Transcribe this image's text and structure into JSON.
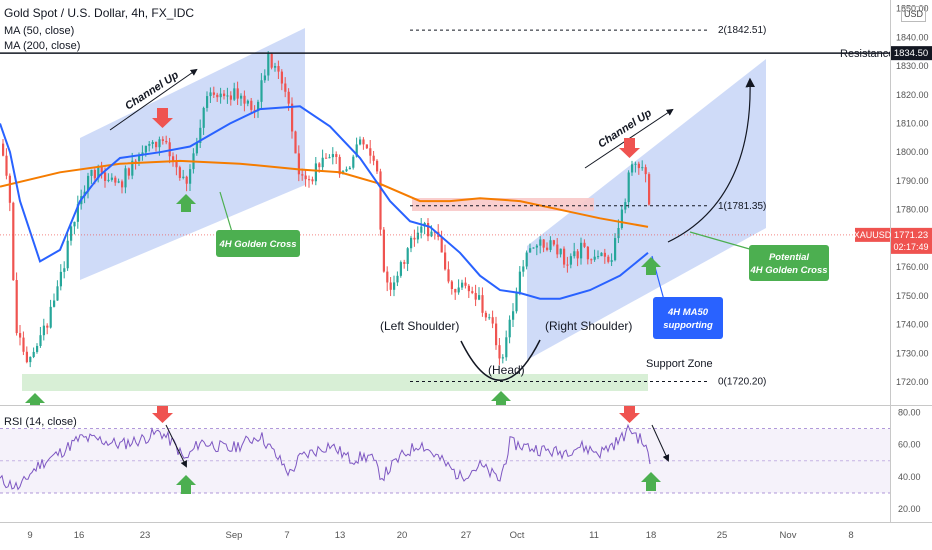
{
  "header": {
    "title": "Gold Spot / U.S. Dollar, 4h, FX_IDC",
    "ma50": "MA (50, close)",
    "ma200": "MA (200, close)",
    "rsi": "RSI (14, close)",
    "currency": "USD"
  },
  "colors": {
    "up": "#26a69a",
    "down": "#ef5350",
    "ma50": "#2962ff",
    "ma200": "#f57c00",
    "rsi": "#7e57c2",
    "channel": "#c7d5f7",
    "support_zone": "#d4edd2",
    "pink_zone": "#f8c9c9",
    "callout_green": "#4caf50",
    "callout_blue": "#2962ff",
    "price_tag": "#ef5350"
  },
  "chart_data": {
    "type": "candlestick",
    "symbol": "XAUUSD",
    "timeframe": "4h",
    "xaxis_ticks": [
      "9",
      "16",
      "23",
      "Sep",
      "7",
      "13",
      "20",
      "27",
      "Oct",
      "11",
      "18",
      "25",
      "Nov",
      "8"
    ],
    "price_axis": {
      "ticks": [
        1720,
        1730,
        1740,
        1750,
        1760,
        1770,
        1780,
        1790,
        1800,
        1810,
        1820,
        1830,
        1840,
        1850
      ],
      "range": [
        1712,
        1853
      ]
    },
    "rsi_axis": {
      "ticks": [
        20,
        40,
        60,
        80
      ],
      "range": [
        12,
        84
      ],
      "bands": [
        30,
        50,
        70
      ]
    },
    "levels": {
      "resistance": {
        "label": "Resistance",
        "value": 1834.5,
        "tag": "1834.50"
      },
      "current": {
        "value": 1771.23,
        "symbol_tag": "XAUUSD",
        "price_tag": "1771.23",
        "countdown": "02:17:49"
      },
      "fib": [
        {
          "label": "2(1842.51)",
          "value": 1842.51
        },
        {
          "label": "1(1781.35)",
          "value": 1781.35
        },
        {
          "label": "0(1720.20)",
          "value": 1720.2
        }
      ]
    },
    "ma50_points": [
      [
        0,
        1810
      ],
      [
        10,
        1800
      ],
      [
        20,
        1783
      ],
      [
        40,
        1762
      ],
      [
        60,
        1766
      ],
      [
        80,
        1783
      ],
      [
        100,
        1792
      ],
      [
        120,
        1798
      ],
      [
        160,
        1800
      ],
      [
        190,
        1802
      ],
      [
        230,
        1810
      ],
      [
        260,
        1815
      ],
      [
        300,
        1816
      ],
      [
        330,
        1809
      ],
      [
        360,
        1798
      ],
      [
        390,
        1783
      ],
      [
        410,
        1776
      ],
      [
        430,
        1774
      ],
      [
        460,
        1765
      ],
      [
        480,
        1757
      ],
      [
        500,
        1752
      ],
      [
        520,
        1751
      ],
      [
        540,
        1749
      ],
      [
        560,
        1749
      ],
      [
        590,
        1752
      ],
      [
        620,
        1757
      ],
      [
        648,
        1765
      ]
    ],
    "ma200_points": [
      [
        0,
        1788
      ],
      [
        60,
        1793
      ],
      [
        120,
        1796
      ],
      [
        180,
        1797
      ],
      [
        240,
        1796
      ],
      [
        300,
        1794
      ],
      [
        340,
        1793
      ],
      [
        380,
        1789
      ],
      [
        420,
        1783
      ],
      [
        450,
        1783
      ],
      [
        480,
        1784
      ],
      [
        520,
        1783
      ],
      [
        560,
        1780
      ],
      [
        600,
        1777
      ],
      [
        648,
        1774
      ]
    ],
    "rsi_points": [
      [
        0,
        38
      ],
      [
        20,
        33
      ],
      [
        30,
        42
      ],
      [
        40,
        48
      ],
      [
        60,
        55
      ],
      [
        80,
        64
      ],
      [
        100,
        63
      ],
      [
        120,
        60
      ],
      [
        140,
        63
      ],
      [
        160,
        68
      ],
      [
        175,
        60
      ],
      [
        185,
        50
      ],
      [
        200,
        62
      ],
      [
        230,
        57
      ],
      [
        260,
        66
      ],
      [
        280,
        50
      ],
      [
        290,
        42
      ],
      [
        300,
        52
      ],
      [
        330,
        60
      ],
      [
        350,
        51
      ],
      [
        370,
        53
      ],
      [
        382,
        40
      ],
      [
        400,
        52
      ],
      [
        420,
        61
      ],
      [
        440,
        51
      ],
      [
        460,
        40
      ],
      [
        480,
        47
      ],
      [
        500,
        38
      ],
      [
        510,
        61
      ],
      [
        540,
        57
      ],
      [
        560,
        55
      ],
      [
        580,
        59
      ],
      [
        600,
        55
      ],
      [
        620,
        63
      ],
      [
        630,
        70
      ],
      [
        645,
        60
      ],
      [
        650,
        48
      ]
    ],
    "channels": [
      "Channel Up",
      "Channel Up"
    ],
    "pattern": {
      "left_shoulder": "(Left Shoulder)",
      "head": "(Head)",
      "right_shoulder": "(Right Shoulder)"
    },
    "annotations": {
      "golden_cross": "4H Golden Cross",
      "potential_cross_line1": "Potential",
      "potential_cross_line2": "4H Golden Cross",
      "ma50_support_line1": "4H MA50",
      "ma50_support_line2": "supporting",
      "support_zone": "Support Zone"
    }
  }
}
